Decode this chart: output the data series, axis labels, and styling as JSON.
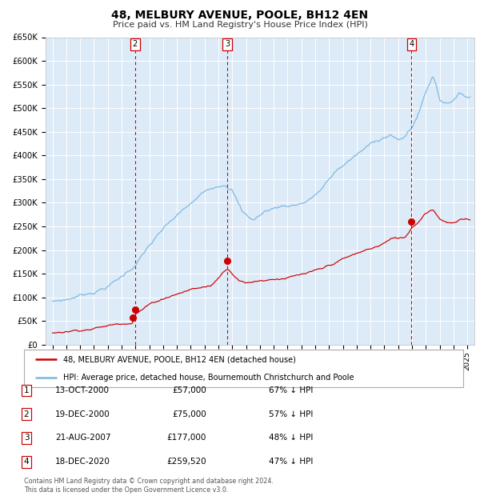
{
  "title": "48, MELBURY AVENUE, POOLE, BH12 4EN",
  "subtitle": "Price paid vs. HM Land Registry's House Price Index (HPI)",
  "bg_color": "#ddeaf7",
  "hpi_color": "#7ab8e0",
  "price_color": "#cc0000",
  "grid_color": "#ffffff",
  "ylim": [
    0,
    650000
  ],
  "yticks": [
    0,
    50000,
    100000,
    150000,
    200000,
    250000,
    300000,
    350000,
    400000,
    450000,
    500000,
    550000,
    600000,
    650000
  ],
  "ytick_labels": [
    "£0",
    "£50K",
    "£100K",
    "£150K",
    "£200K",
    "£250K",
    "£300K",
    "£350K",
    "£400K",
    "£450K",
    "£500K",
    "£550K",
    "£600K",
    "£650K"
  ],
  "sale_dates": [
    2000.79,
    2000.97,
    2007.64,
    2020.96
  ],
  "sale_prices": [
    57000,
    75000,
    177000,
    259520
  ],
  "vline_x": [
    2000.97,
    2007.64,
    2020.96
  ],
  "vline_labels": [
    "2",
    "3",
    "4"
  ],
  "legend_red": "48, MELBURY AVENUE, POOLE, BH12 4EN (detached house)",
  "legend_blue": "HPI: Average price, detached house, Bournemouth Christchurch and Poole",
  "table_rows": [
    {
      "num": "1",
      "date": "13-OCT-2000",
      "price": "£57,000",
      "hpi": "67% ↓ HPI"
    },
    {
      "num": "2",
      "date": "19-DEC-2000",
      "price": "£75,000",
      "hpi": "57% ↓ HPI"
    },
    {
      "num": "3",
      "date": "21-AUG-2007",
      "price": "£177,000",
      "hpi": "48% ↓ HPI"
    },
    {
      "num": "4",
      "date": "18-DEC-2020",
      "price": "£259,520",
      "hpi": "47% ↓ HPI"
    }
  ],
  "footer": "Contains HM Land Registry data © Crown copyright and database right 2024.\nThis data is licensed under the Open Government Licence v3.0.",
  "xlim_start": 1994.5,
  "xlim_end": 2025.5
}
